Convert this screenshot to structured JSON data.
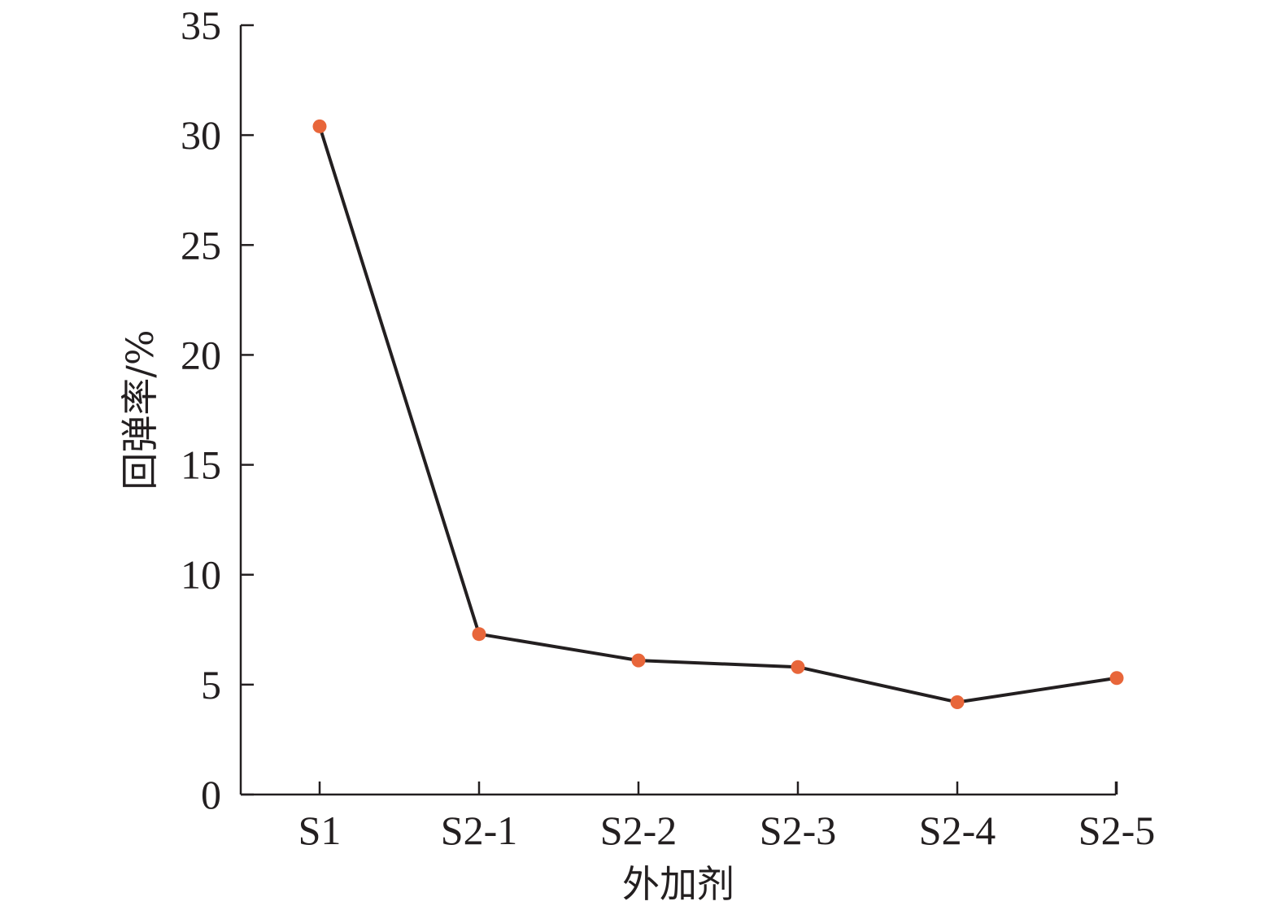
{
  "chart_data": {
    "type": "line",
    "title": "",
    "xlabel": "外加剂",
    "ylabel": "回弹率/%",
    "categories": [
      "S1",
      "S2-1",
      "S2-2",
      "S2-3",
      "S2-4",
      "S2-5"
    ],
    "series": [
      {
        "values": [
          30.4,
          7.3,
          6.1,
          5.8,
          4.2,
          5.3
        ]
      }
    ],
    "ylim": [
      0,
      35
    ],
    "yticks": [
      0,
      5,
      10,
      15,
      20,
      25,
      30,
      35
    ],
    "grid": false,
    "colors": {
      "line": "#231f20",
      "marker": "#e8663a",
      "axis": "#231f20"
    }
  }
}
